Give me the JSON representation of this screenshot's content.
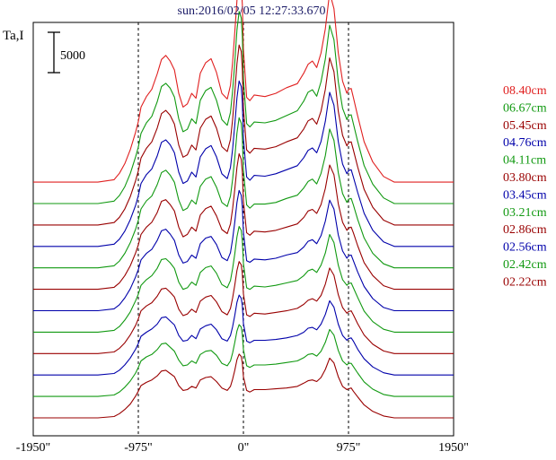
{
  "chart_data": {
    "type": "line",
    "title": "sun:2016/02/05 12:27:33.670",
    "ylabel": "Ta,I",
    "scale_bar_label": "5000",
    "xlim": [
      -1950,
      1950
    ],
    "x_ticks": [
      {
        "value": -1950,
        "label": "-1950\""
      },
      {
        "value": -975,
        "label": "-975\""
      },
      {
        "value": 0,
        "label": "0\""
      },
      {
        "value": 975,
        "label": "975\""
      },
      {
        "value": 1950,
        "label": "1950\""
      }
    ],
    "reference_lines": [
      -975,
      0,
      975
    ],
    "x": [
      -1950,
      -1350,
      -1200,
      -1150,
      -1100,
      -1050,
      -1000,
      -975,
      -950,
      -900,
      -850,
      -800,
      -760,
      -720,
      -680,
      -640,
      -600,
      -560,
      -520,
      -480,
      -440,
      -400,
      -350,
      -300,
      -250,
      -200,
      -150,
      -120,
      -100,
      -80,
      -60,
      -40,
      -20,
      -10,
      0,
      30,
      60,
      100,
      200,
      300,
      400,
      500,
      560,
      600,
      640,
      680,
      720,
      760,
      800,
      840,
      880,
      920,
      960,
      975,
      1000,
      1020,
      1060,
      1120,
      1200,
      1300,
      1400,
      1950
    ],
    "series": [
      {
        "name": "08.40cm",
        "color": "#e02020",
        "values": [
          0,
          0,
          300,
          1100,
          2300,
          4000,
          6200,
          7500,
          9300,
          10600,
          11500,
          13400,
          15200,
          15700,
          15000,
          13900,
          11000,
          9300,
          9700,
          11000,
          10400,
          13500,
          14800,
          15300,
          13600,
          11000,
          10300,
          12000,
          14900,
          18600,
          22500,
          25200,
          24400,
          22000,
          16500,
          10500,
          10100,
          10800,
          10600,
          11000,
          11700,
          12200,
          13500,
          14600,
          15000,
          14200,
          16000,
          19000,
          23500,
          21500,
          16000,
          12500,
          11000,
          11500,
          11600,
          10500,
          8200,
          5000,
          2500,
          700,
          0,
          0
        ]
      },
      {
        "name": "06.67cm",
        "color": "#119911",
        "values": [
          0,
          0,
          300,
          1000,
          2100,
          3700,
          5800,
          7000,
          8700,
          10000,
          10800,
          12600,
          14500,
          14900,
          14300,
          13200,
          10500,
          8900,
          9200,
          10500,
          9900,
          12800,
          14000,
          14400,
          12800,
          10400,
          9700,
          11300,
          14000,
          17500,
          21500,
          23800,
          23000,
          20700,
          15500,
          9900,
          9500,
          10100,
          10000,
          10300,
          10900,
          11500,
          12700,
          13800,
          14100,
          13300,
          15100,
          17900,
          22100,
          20300,
          15100,
          11800,
          10400,
          10900,
          11000,
          9900,
          7700,
          4700,
          2400,
          700,
          0,
          0
        ]
      },
      {
        "name": "05.45cm",
        "color": "#990000",
        "values": [
          0,
          0,
          300,
          950,
          2000,
          3500,
          5500,
          6700,
          8300,
          9500,
          10300,
          12000,
          13800,
          14200,
          13600,
          12500,
          9900,
          8400,
          8700,
          9900,
          9300,
          12000,
          13100,
          13500,
          12000,
          9700,
          9100,
          10600,
          13100,
          16400,
          20000,
          22300,
          21500,
          19300,
          14500,
          9300,
          8900,
          9500,
          9400,
          9700,
          10300,
          10800,
          11900,
          12900,
          13200,
          12500,
          14100,
          16800,
          20700,
          19000,
          14100,
          11100,
          9800,
          10200,
          10300,
          9300,
          7200,
          4400,
          2200,
          600,
          0,
          0
        ]
      },
      {
        "name": "04.76cm",
        "color": "#0000aa",
        "values": [
          0,
          0,
          280,
          900,
          1900,
          3300,
          5100,
          6300,
          7800,
          8900,
          9600,
          11200,
          12900,
          13200,
          12600,
          11600,
          9200,
          7800,
          8100,
          9200,
          8600,
          11100,
          12100,
          12500,
          11100,
          9000,
          8400,
          9800,
          12100,
          15100,
          18400,
          20500,
          19800,
          17800,
          13400,
          8600,
          8200,
          8800,
          8700,
          9000,
          9500,
          10000,
          11000,
          11900,
          12200,
          11600,
          13000,
          15500,
          19100,
          17500,
          13000,
          10200,
          9000,
          9400,
          9500,
          8600,
          6700,
          4100,
          2000,
          560,
          0,
          0
        ]
      },
      {
        "name": "04.11cm",
        "color": "#119911",
        "values": [
          0,
          0,
          260,
          850,
          1800,
          3100,
          4800,
          5900,
          7300,
          8300,
          8900,
          10300,
          11800,
          12100,
          11500,
          10600,
          8400,
          7100,
          7400,
          8400,
          7900,
          10100,
          11000,
          11300,
          10000,
          8100,
          7600,
          8900,
          11000,
          13700,
          16700,
          18600,
          17900,
          16100,
          12100,
          7800,
          7400,
          7900,
          7900,
          8100,
          8600,
          9000,
          9900,
          10700,
          11000,
          10400,
          11700,
          13900,
          17200,
          15800,
          11800,
          9200,
          8100,
          8500,
          8600,
          7800,
          6000,
          3700,
          1800,
          500,
          0,
          0
        ]
      },
      {
        "name": "03.80cm",
        "color": "#990000",
        "values": [
          0,
          0,
          250,
          800,
          1700,
          2900,
          4500,
          5500,
          6800,
          7700,
          8300,
          9500,
          10900,
          11100,
          10500,
          9700,
          7700,
          6500,
          6800,
          7700,
          7200,
          9200,
          10000,
          10300,
          9100,
          7400,
          6900,
          8100,
          10000,
          12400,
          15100,
          16800,
          16100,
          14500,
          10900,
          7000,
          6700,
          7200,
          7100,
          7300,
          7700,
          8100,
          8900,
          9700,
          9900,
          9400,
          10500,
          12500,
          15400,
          14200,
          10600,
          8300,
          7300,
          7600,
          7700,
          7000,
          5400,
          3300,
          1700,
          450,
          0,
          0
        ]
      },
      {
        "name": "03.45cm",
        "color": "#0000aa",
        "values": [
          0,
          0,
          230,
          750,
          1600,
          2700,
          4200,
          5100,
          6300,
          7100,
          7600,
          8700,
          9900,
          10100,
          9500,
          8700,
          6900,
          5900,
          6100,
          6900,
          6500,
          8300,
          9000,
          9200,
          8200,
          6600,
          6200,
          7200,
          8900,
          11000,
          13400,
          14900,
          14300,
          12900,
          9700,
          6200,
          6000,
          6400,
          6300,
          6500,
          6900,
          7200,
          7900,
          8600,
          8800,
          8300,
          9300,
          11100,
          13700,
          12600,
          9400,
          7400,
          6500,
          6800,
          6900,
          6200,
          4800,
          3000,
          1500,
          400,
          0,
          0
        ]
      },
      {
        "name": "03.21cm",
        "color": "#119911",
        "values": [
          0,
          0,
          220,
          700,
          1500,
          2500,
          3900,
          4700,
          5800,
          6500,
          7000,
          7900,
          9000,
          9100,
          8600,
          7900,
          6200,
          5300,
          5500,
          6200,
          5800,
          7400,
          8000,
          8200,
          7300,
          5900,
          5500,
          6400,
          7900,
          9700,
          11800,
          13100,
          12600,
          11300,
          8500,
          5500,
          5300,
          5700,
          5600,
          5800,
          6100,
          6400,
          7000,
          7600,
          7800,
          7400,
          8300,
          9800,
          12100,
          11100,
          8300,
          6500,
          5800,
          6000,
          6100,
          5500,
          4300,
          2600,
          1300,
          360,
          0,
          0
        ]
      },
      {
        "name": "02.86cm",
        "color": "#990000",
        "values": [
          0,
          0,
          200,
          650,
          1350,
          2300,
          3500,
          4300,
          5300,
          5900,
          6300,
          7100,
          8000,
          8100,
          7600,
          7000,
          5500,
          4700,
          4900,
          5500,
          5100,
          6500,
          7000,
          7200,
          6400,
          5200,
          4800,
          5600,
          6900,
          8500,
          10300,
          11400,
          11000,
          9900,
          7400,
          4800,
          4600,
          5000,
          4900,
          5100,
          5300,
          5600,
          6100,
          6600,
          6800,
          6500,
          7200,
          8600,
          10600,
          9700,
          7300,
          5700,
          5000,
          5200,
          5300,
          4800,
          3700,
          2300,
          1150,
          320,
          0,
          0
        ]
      },
      {
        "name": "02.56cm",
        "color": "#0000aa",
        "values": [
          0,
          0,
          190,
          600,
          1250,
          2100,
          3200,
          3900,
          4800,
          5300,
          5700,
          6300,
          7100,
          7200,
          6700,
          6200,
          4900,
          4200,
          4300,
          4900,
          4500,
          5700,
          6100,
          6300,
          5600,
          4500,
          4200,
          4900,
          6000,
          7400,
          9000,
          9900,
          9500,
          8600,
          6400,
          4200,
          4000,
          4300,
          4300,
          4400,
          4600,
          4900,
          5300,
          5800,
          5900,
          5600,
          6300,
          7500,
          9200,
          8400,
          6300,
          4900,
          4300,
          4500,
          4600,
          4200,
          3200,
          2000,
          1000,
          280,
          0,
          0
        ]
      },
      {
        "name": "02.42cm",
        "color": "#119911",
        "values": [
          0,
          0,
          180,
          560,
          1150,
          1900,
          2900,
          3600,
          4400,
          4900,
          5200,
          5800,
          6500,
          6600,
          6100,
          5600,
          4500,
          3800,
          3900,
          4400,
          4100,
          5200,
          5600,
          5700,
          5100,
          4100,
          3800,
          4400,
          5400,
          6700,
          8100,
          8900,
          8600,
          7700,
          5800,
          3800,
          3600,
          3900,
          3900,
          4000,
          4200,
          4400,
          4800,
          5200,
          5300,
          5000,
          5600,
          6700,
          8300,
          7600,
          5700,
          4400,
          3900,
          4100,
          4100,
          3700,
          2900,
          1800,
          900,
          250,
          0,
          0
        ]
      },
      {
        "name": "02.22cm",
        "color": "#990000",
        "values": [
          0,
          0,
          170,
          520,
          1050,
          1700,
          2700,
          3300,
          4000,
          4400,
          4700,
          5200,
          5800,
          5900,
          5500,
          5100,
          4000,
          3400,
          3500,
          3900,
          3700,
          4700,
          5000,
          5100,
          4500,
          3700,
          3400,
          3900,
          4800,
          5900,
          7200,
          7900,
          7600,
          6800,
          5100,
          3400,
          3200,
          3500,
          3500,
          3600,
          3700,
          3900,
          4300,
          4600,
          4700,
          4500,
          5000,
          6000,
          7400,
          6800,
          5100,
          3900,
          3500,
          3600,
          3700,
          3300,
          2600,
          1600,
          800,
          230,
          0,
          0
        ]
      }
    ]
  }
}
